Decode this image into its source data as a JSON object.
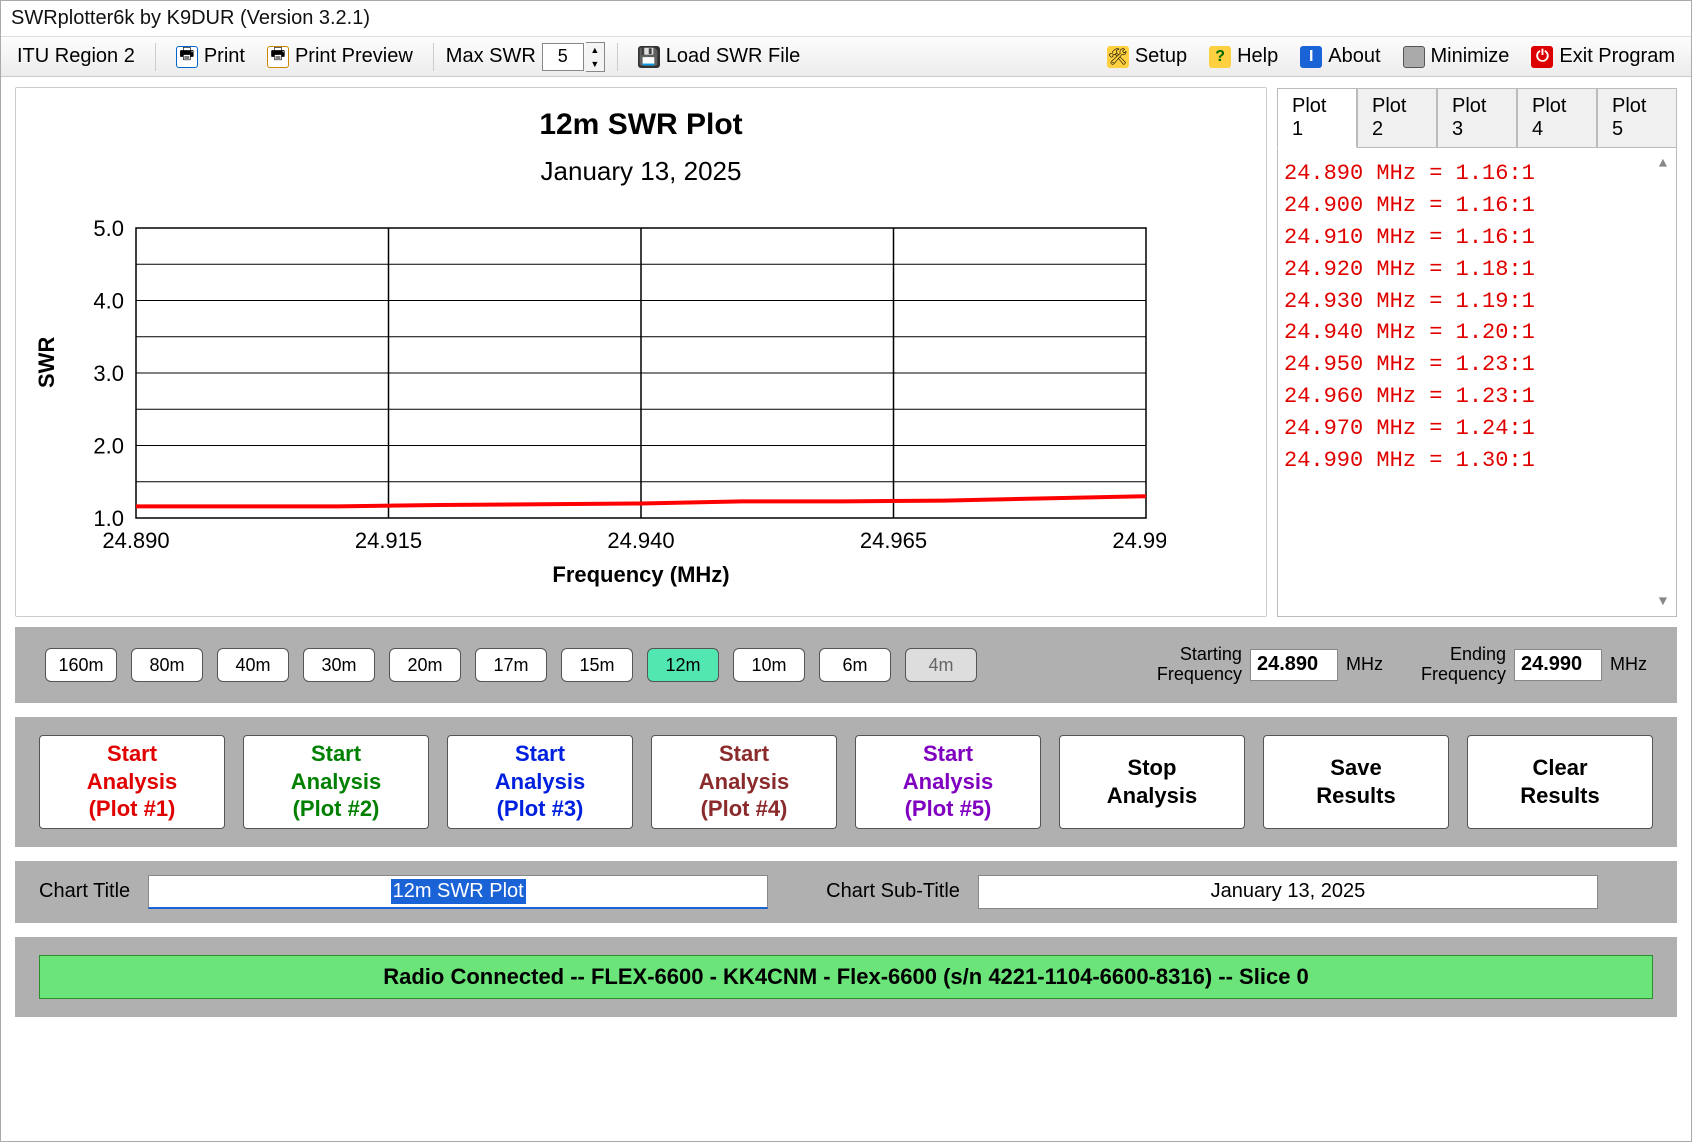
{
  "window": {
    "title": "SWRplotter6k by K9DUR (Version 3.2.1)"
  },
  "toolbar": {
    "region": "ITU Region 2",
    "print": "Print",
    "print_preview": "Print Preview",
    "max_swr_label": "Max SWR",
    "max_swr_value": "5",
    "load_swr": "Load SWR File",
    "setup": "Setup",
    "help": "Help",
    "about": "About",
    "minimize": "Minimize",
    "exit": "Exit Program"
  },
  "chart": {
    "title": "12m SWR Plot",
    "subtitle": "January 13, 2025",
    "xlabel": "Frequency (MHz)",
    "ylabel": "SWR",
    "type": "line",
    "x_min": 24.89,
    "x_max": 24.99,
    "x_ticks": [
      "24.890",
      "24.915",
      "24.940",
      "24.965",
      "24.990"
    ],
    "y_min": 1.0,
    "y_max": 5.0,
    "y_ticks": [
      "1.0",
      "2.0",
      "3.0",
      "4.0",
      "5.0"
    ],
    "y_minor_lines": [
      1.5,
      2.5,
      3.5,
      4.5
    ],
    "series_color": "#ff0000",
    "series_width": 4,
    "grid_color": "#000000",
    "background": "#ffffff",
    "tick_fontsize": 22,
    "label_fontsize": 22,
    "points": [
      {
        "x": 24.89,
        "y": 1.16
      },
      {
        "x": 24.9,
        "y": 1.16
      },
      {
        "x": 24.91,
        "y": 1.16
      },
      {
        "x": 24.92,
        "y": 1.18
      },
      {
        "x": 24.93,
        "y": 1.19
      },
      {
        "x": 24.94,
        "y": 1.2
      },
      {
        "x": 24.95,
        "y": 1.23
      },
      {
        "x": 24.96,
        "y": 1.23
      },
      {
        "x": 24.97,
        "y": 1.24
      },
      {
        "x": 24.99,
        "y": 1.3
      }
    ]
  },
  "plot_tabs": {
    "labels": [
      "Plot 1",
      "Plot 2",
      "Plot 3",
      "Plot 4",
      "Plot 5"
    ],
    "active": 0
  },
  "listing": {
    "rows": [
      "24.890 MHz = 1.16:1",
      "24.900 MHz = 1.16:1",
      "24.910 MHz = 1.16:1",
      "24.920 MHz = 1.18:1",
      "24.930 MHz = 1.19:1",
      "24.940 MHz = 1.20:1",
      "24.950 MHz = 1.23:1",
      "24.960 MHz = 1.23:1",
      "24.970 MHz = 1.24:1",
      "24.990 MHz = 1.30:1"
    ],
    "text_color": "#e00000",
    "font_family": "Consolas"
  },
  "bands": {
    "items": [
      "160m",
      "80m",
      "40m",
      "30m",
      "20m",
      "17m",
      "15m",
      "12m",
      "10m",
      "6m",
      "4m"
    ],
    "selected": "12m",
    "disabled": [
      "4m"
    ]
  },
  "freq": {
    "start_label_l1": "Starting",
    "start_label_l2": "Frequency",
    "start_value": "24.890",
    "end_label_l1": "Ending",
    "end_label_l2": "Frequency",
    "end_value": "24.990",
    "unit": "MHz"
  },
  "actions": {
    "start1_l1": "Start",
    "start1_l2": "Analysis",
    "start1_l3": "(Plot #1)",
    "start1_color": "#e00000",
    "start2_l1": "Start",
    "start2_l2": "Analysis",
    "start2_l3": "(Plot #2)",
    "start2_color": "#008000",
    "start3_l1": "Start",
    "start3_l2": "Analysis",
    "start3_l3": "(Plot #3)",
    "start3_color": "#0020e0",
    "start4_l1": "Start",
    "start4_l2": "Analysis",
    "start4_l3": "(Plot #4)",
    "start4_color": "#8b2a2a",
    "start5_l1": "Start",
    "start5_l2": "Analysis",
    "start5_l3": "(Plot #5)",
    "start5_color": "#8000c0",
    "stop_l1": "Stop",
    "stop_l2": "Analysis",
    "save_l1": "Save",
    "save_l2": "Results",
    "clear_l1": "Clear",
    "clear_l2": "Results"
  },
  "chart_labels": {
    "title_label": "Chart Title",
    "title_value": "12m SWR Plot",
    "sub_label": "Chart Sub-Title",
    "sub_value": "January 13, 2025"
  },
  "status": {
    "text": "Radio Connected -- FLEX-6600 - KK4CNM - Flex-6600  (s/n 4221-1104-6600-8316) -- Slice 0",
    "bg": "#6be47a"
  }
}
